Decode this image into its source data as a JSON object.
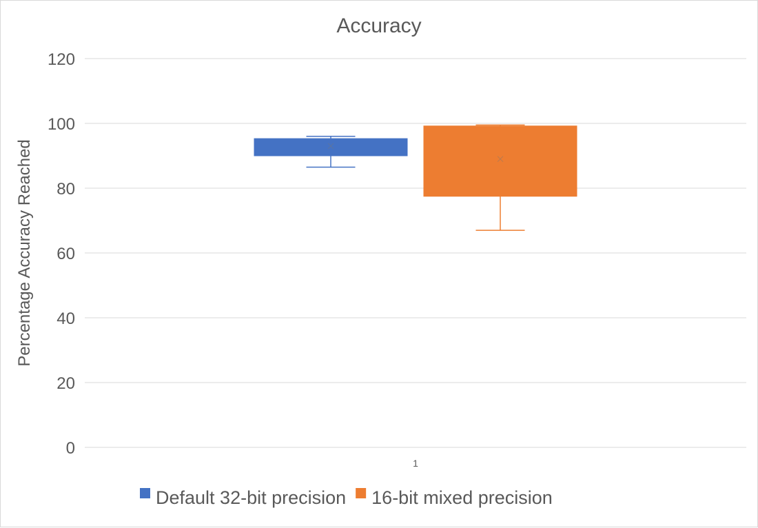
{
  "chart_data": {
    "type": "box",
    "title": "Accuracy",
    "xlabel": "",
    "ylabel": "Percentage Accuracy Reached",
    "categories": [
      "1"
    ],
    "ylim": [
      0,
      120
    ],
    "yticks": [
      0,
      20,
      40,
      60,
      80,
      100,
      120
    ],
    "grid": true,
    "legend_position": "bottom",
    "series": [
      {
        "name": "Default 32-bit precision",
        "color": "#4472C4",
        "min": 86.5,
        "q1": 90,
        "median": 95,
        "q3": 95.3,
        "max": 96,
        "mean": 93
      },
      {
        "name": "16-bit mixed precision",
        "color": "#ED7D31",
        "min": 67,
        "q1": 77.5,
        "median": 99,
        "q3": 99.2,
        "max": 99.5,
        "mean": 89
      }
    ]
  }
}
